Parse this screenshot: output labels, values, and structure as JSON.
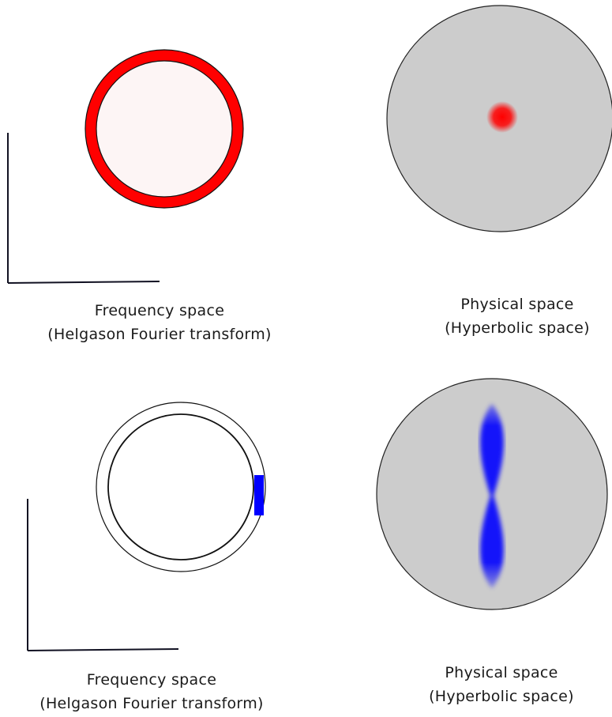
{
  "panels": {
    "top_left": {
      "caption_line1": "Frequency space",
      "caption_line2": "(Helgason Fourier transform)",
      "ring_color": "#ff0000",
      "inner_fill": "#fdf5f5"
    },
    "top_right": {
      "caption_line1": "Physical space",
      "caption_line2": "(Hyperbolic space)",
      "disk_fill": "#cccccc",
      "blob_color": "#ff0000"
    },
    "bottom_left": {
      "caption_line1": "Frequency space",
      "caption_line2": "(Helgason Fourier transform)",
      "marker_color": "#0000ff"
    },
    "bottom_right": {
      "caption_line1": "Physical space",
      "caption_line2": "(Hyperbolic space)",
      "disk_fill": "#cccccc",
      "beam_color": "#0000ff"
    }
  }
}
